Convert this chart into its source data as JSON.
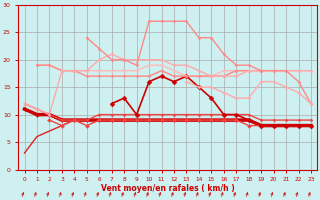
{
  "bg_color": "#cff0f0",
  "grid_color": "#aaaaaa",
  "xlabel": "Vent moyen/en rafales ( km/h )",
  "xlabel_color": "#cc0000",
  "xlim": [
    -0.5,
    23.5
  ],
  "ylim": [
    0,
    30
  ],
  "xticks": [
    0,
    1,
    2,
    3,
    4,
    5,
    6,
    7,
    8,
    9,
    10,
    11,
    12,
    13,
    14,
    15,
    16,
    17,
    18,
    19,
    20,
    21,
    22,
    23
  ],
  "yticks": [
    0,
    5,
    10,
    15,
    20,
    25,
    30
  ],
  "tick_color": "#cc0000",
  "series": [
    {
      "x": [
        0,
        1,
        2,
        3,
        4,
        5,
        6,
        7,
        8,
        9,
        10,
        11,
        12,
        13,
        14,
        15,
        16,
        17,
        18,
        19,
        20,
        21,
        22,
        23
      ],
      "y": [
        3,
        6,
        7,
        8,
        9,
        9,
        9,
        9,
        9,
        9,
        9,
        9,
        9,
        9,
        9,
        9,
        9,
        9,
        9,
        8,
        8,
        8,
        8,
        8
      ],
      "color": "#dd2222",
      "lw": 1.0,
      "marker": null,
      "ms": 0
    },
    {
      "x": [
        0,
        1,
        2,
        3,
        4,
        5,
        6,
        7,
        8,
        9,
        10,
        11,
        12,
        13,
        14,
        15,
        16,
        17,
        18,
        19,
        20,
        21,
        22,
        23
      ],
      "y": [
        11,
        10,
        10,
        9,
        9,
        9,
        9,
        9,
        9,
        9,
        9,
        9,
        9,
        9,
        9,
        9,
        9,
        9,
        9,
        8,
        8,
        8,
        8,
        8
      ],
      "color": "#cc0000",
      "lw": 2.5,
      "marker": null,
      "ms": 0
    },
    {
      "x": [
        0,
        1,
        2,
        3,
        4,
        5,
        6,
        7,
        8,
        9,
        10,
        11,
        12,
        13,
        14,
        15,
        16,
        17,
        18,
        19,
        20,
        21,
        22,
        23
      ],
      "y": [
        11,
        10,
        10,
        9,
        9,
        9,
        9,
        9,
        9,
        9,
        9,
        9,
        9,
        9,
        9,
        9,
        9,
        9,
        9,
        8,
        8,
        8,
        8,
        8
      ],
      "color": "#cc0000",
      "lw": 1.5,
      "marker": "D",
      "ms": 2.0
    },
    {
      "x": [
        2,
        3,
        4,
        5,
        6,
        7,
        8,
        9,
        10,
        11,
        12,
        13,
        14,
        15,
        16,
        17,
        18,
        19,
        20,
        21,
        22,
        23
      ],
      "y": [
        9,
        8,
        9,
        8,
        9,
        9,
        9,
        9,
        9,
        9,
        9,
        9,
        9,
        9,
        9,
        9,
        8,
        8,
        8,
        8,
        8,
        8
      ],
      "color": "#ee4444",
      "lw": 1.0,
      "marker": "D",
      "ms": 2.0
    },
    {
      "x": [
        0,
        1,
        2,
        3,
        4,
        5,
        6,
        7,
        8,
        9,
        10,
        11,
        12,
        13,
        14,
        15,
        16,
        17,
        18,
        19,
        20,
        21,
        22,
        23
      ],
      "y": [
        12,
        11,
        10,
        9,
        9,
        9,
        10,
        10,
        10,
        10,
        10,
        10,
        10,
        10,
        10,
        10,
        10,
        10,
        10,
        9,
        9,
        9,
        9,
        9
      ],
      "color": "#ee4444",
      "lw": 1.0,
      "marker": "D",
      "ms": 1.5
    },
    {
      "x": [
        0,
        1,
        2,
        3,
        4,
        5,
        6,
        7,
        8,
        9,
        10,
        11,
        12,
        13,
        14,
        15,
        16,
        17,
        18,
        19,
        20,
        21,
        22,
        23
      ],
      "y": [
        null,
        null,
        null,
        null,
        null,
        null,
        null,
        12,
        13,
        10,
        16,
        17,
        16,
        17,
        15,
        13,
        10,
        10,
        9,
        8,
        8,
        8,
        8,
        8
      ],
      "color": "#cc0000",
      "lw": 1.2,
      "marker": "D",
      "ms": 2.5
    },
    {
      "x": [
        1,
        2,
        3,
        4,
        5,
        6,
        7,
        8,
        9,
        10,
        11,
        12,
        13,
        14,
        15,
        16,
        17,
        18,
        19,
        20,
        21,
        22,
        23
      ],
      "y": [
        19,
        19,
        18,
        18,
        18,
        18,
        18,
        18,
        18,
        19,
        19,
        18,
        17,
        17,
        17,
        18,
        18,
        18,
        18,
        18,
        18,
        18,
        18
      ],
      "color": "#ffbbbb",
      "lw": 1.0,
      "marker": "D",
      "ms": 1.5
    },
    {
      "x": [
        1,
        2,
        3,
        4,
        5,
        6,
        7,
        8,
        9,
        10,
        11,
        12,
        13,
        14,
        15,
        16,
        17,
        18,
        19,
        20,
        21,
        22,
        23
      ],
      "y": [
        19,
        19,
        18,
        18,
        17,
        17,
        17,
        17,
        17,
        17,
        18,
        17,
        17,
        17,
        17,
        17,
        18,
        18,
        18,
        null,
        null,
        null,
        null
      ],
      "color": "#ff8888",
      "lw": 1.0,
      "marker": "D",
      "ms": 1.5
    },
    {
      "x": [
        0,
        1,
        2,
        3,
        4,
        5,
        6,
        7,
        8,
        9,
        10,
        11,
        12,
        13,
        14,
        15,
        16,
        17,
        18,
        19,
        20,
        21,
        22,
        23
      ],
      "y": [
        12,
        11,
        10,
        18,
        18,
        18,
        20,
        21,
        20,
        20,
        20,
        20,
        19,
        19,
        18,
        17,
        17,
        17,
        18,
        18,
        18,
        18,
        18,
        18
      ],
      "color": "#ffaaaa",
      "lw": 1.0,
      "marker": "D",
      "ms": 1.5
    },
    {
      "x": [
        5,
        6,
        7,
        8,
        9,
        10,
        11,
        12,
        13,
        14,
        15,
        16,
        17,
        18,
        19,
        20,
        21,
        22,
        23
      ],
      "y": [
        24,
        22,
        20,
        20,
        19,
        27,
        27,
        27,
        27,
        24,
        24,
        21,
        19,
        19,
        18,
        18,
        18,
        16,
        12
      ],
      "color": "#ff8888",
      "lw": 1.0,
      "marker": "D",
      "ms": 1.5
    },
    {
      "x": [
        13,
        14,
        15,
        16,
        17,
        18,
        19,
        20,
        21,
        22,
        23
      ],
      "y": [
        16,
        15,
        15,
        14,
        13,
        13,
        16,
        16,
        15,
        14,
        12
      ],
      "color": "#ffaaaa",
      "lw": 1.0,
      "marker": "D",
      "ms": 1.5
    }
  ],
  "arrows_x": [
    0,
    1,
    2,
    3,
    4,
    5,
    6,
    7,
    8,
    9,
    10,
    11,
    12,
    13,
    14,
    15,
    16,
    17,
    18,
    19,
    20,
    21,
    22,
    23
  ],
  "arrow_color": "#cc0000"
}
